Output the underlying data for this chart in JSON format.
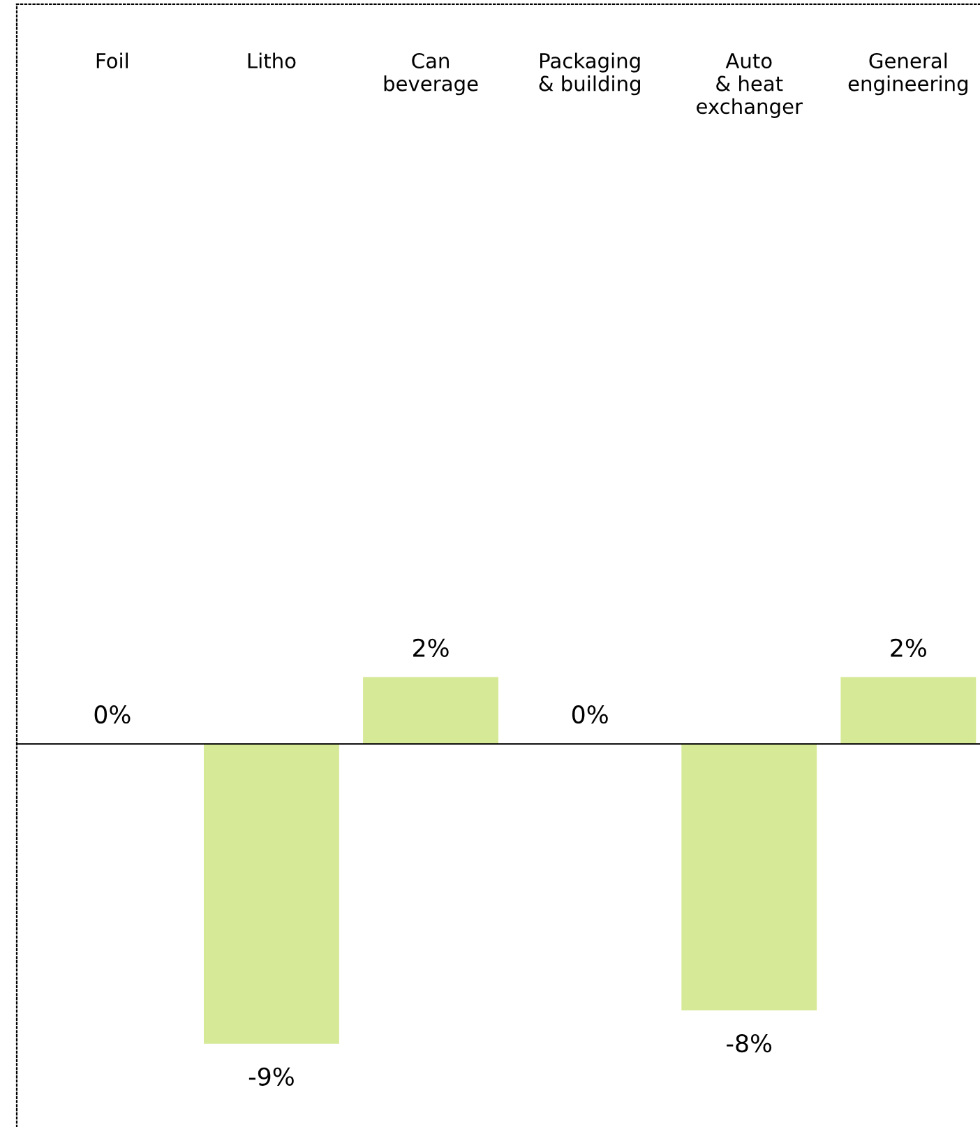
{
  "chart_data": {
    "type": "bar",
    "categories": [
      "Foil",
      "Litho",
      "Can\nbeverage",
      "Packaging\n& building",
      "Auto\n& heat\nexchanger",
      "General\nengineering"
    ],
    "values": [
      0,
      -9,
      2,
      0,
      -8,
      2
    ],
    "color": "#d6e996",
    "ylim": [
      -11.5,
      22.2
    ],
    "tick_labels": "x",
    "data_labels": true,
    "value_labels": [
      "0%",
      "-9%",
      "2%",
      "0%",
      "-8%",
      "2%"
    ],
    "grid": false,
    "legend": false
  }
}
